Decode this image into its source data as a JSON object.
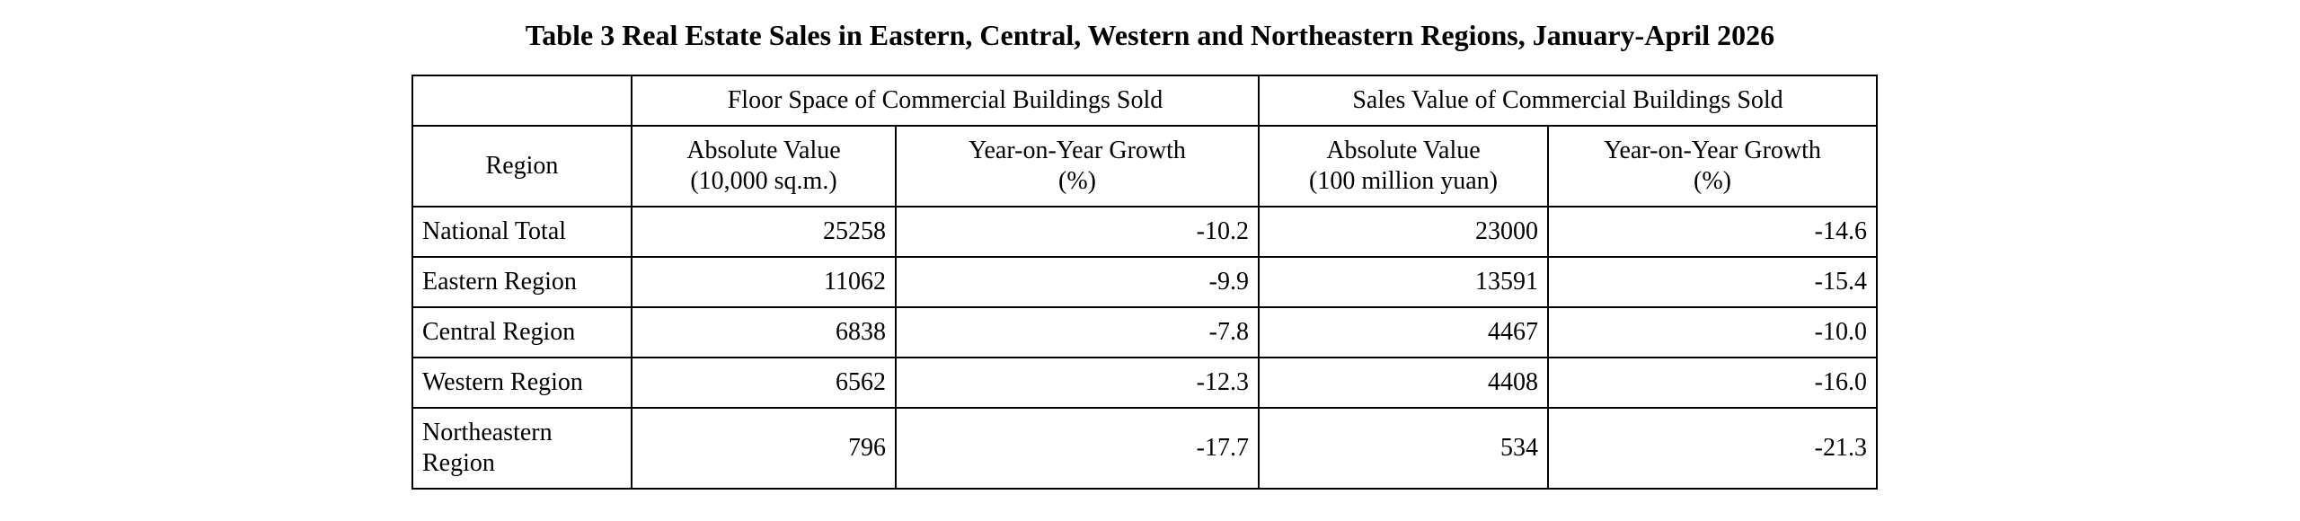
{
  "title": "Table 3 Real Estate Sales in Eastern, Central, Western and Northeastern Regions, January-April 2026",
  "headers": {
    "region": "Region",
    "floor_space_group": "Floor Space of Commercial Buildings Sold",
    "sales_value_group": "Sales Value of Commercial Buildings Sold",
    "floor_abs_line1": "Absolute Value",
    "floor_abs_line2": "(10,000 sq.m.)",
    "floor_yoy_line1": "Year-on-Year Growth",
    "floor_yoy_line2": "(%)",
    "sales_abs_line1": "Absolute Value",
    "sales_abs_line2": "(100 million yuan)",
    "sales_yoy_line1": "Year-on-Year Growth",
    "sales_yoy_line2": "(%)"
  },
  "rows": [
    {
      "region": "National Total",
      "floor_abs": "25258",
      "floor_yoy": "-10.2",
      "sales_abs": "23000",
      "sales_yoy": "-14.6"
    },
    {
      "region": "Eastern Region",
      "floor_abs": "11062",
      "floor_yoy": "-9.9",
      "sales_abs": "13591",
      "sales_yoy": "-15.4"
    },
    {
      "region": "Central Region",
      "floor_abs": "6838",
      "floor_yoy": "-7.8",
      "sales_abs": "4467",
      "sales_yoy": "-10.0"
    },
    {
      "region": "Western Region",
      "floor_abs": "6562",
      "floor_yoy": "-12.3",
      "sales_abs": "4408",
      "sales_yoy": "-16.0"
    },
    {
      "region_line1": "Northeastern",
      "region_line2": "Region",
      "floor_abs": "796",
      "floor_yoy": "-17.7",
      "sales_abs": "534",
      "sales_yoy": "-21.3"
    }
  ]
}
